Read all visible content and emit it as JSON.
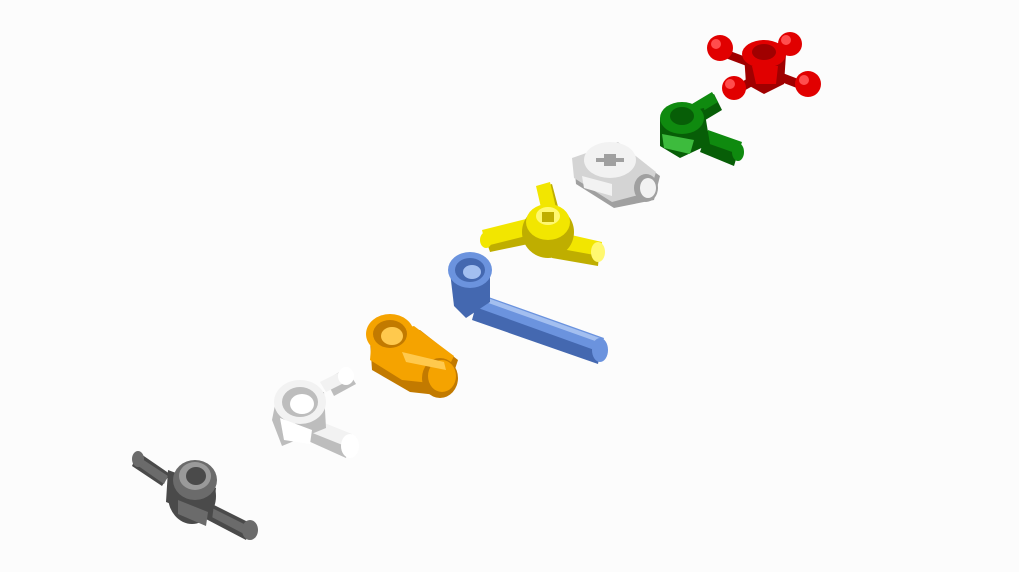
{
  "scene": {
    "background": "#fcfcfc"
  },
  "parts": [
    {
      "id": "dark-gray-double-axle-connector",
      "color": "#6b6b6b",
      "shade": "#4a4a4a",
      "light": "#9a9a9a"
    },
    {
      "id": "white-axle-pin-connector",
      "color": "#f2f2f2",
      "shade": "#bdbdbd",
      "light": "#ffffff"
    },
    {
      "id": "orange-axle-pin-connector",
      "color": "#f5a300",
      "shade": "#c27a00",
      "light": "#ffc94d"
    },
    {
      "id": "blue-long-axle-pin",
      "color": "#6b93de",
      "shade": "#4468b0",
      "light": "#a3bff0"
    },
    {
      "id": "yellow-triple-axle-connector",
      "color": "#f2e600",
      "shade": "#bfae00",
      "light": "#fff870"
    },
    {
      "id": "light-gray-cross-block",
      "color": "#d4d4d4",
      "shade": "#a0a0a0",
      "light": "#f2f2f2"
    },
    {
      "id": "green-angled-axle-connector",
      "color": "#0f8a0f",
      "shade": "#075e07",
      "light": "#3dbb3d"
    },
    {
      "id": "red-four-ball-hub",
      "color": "#e10000",
      "shade": "#a00000",
      "light": "#ff4d4d"
    }
  ]
}
